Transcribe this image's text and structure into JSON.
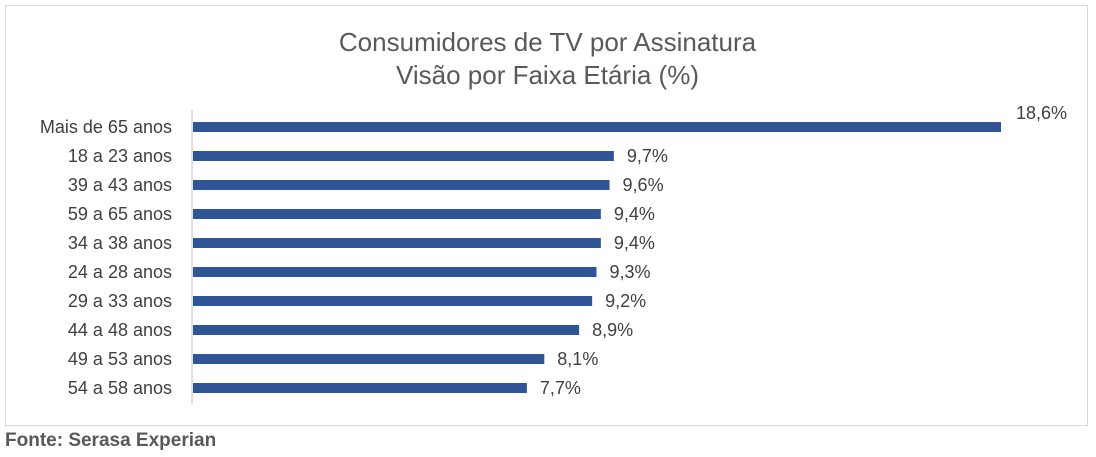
{
  "chart_data": {
    "type": "bar",
    "orientation": "horizontal",
    "title": "Consumidores de TV por Assinatura",
    "subtitle": "Visão por Faixa Etária (%)",
    "categories": [
      "Mais de 65 anos",
      "18 a 23 anos",
      "39 a 43 anos",
      "59 a 65 anos",
      "34 a 38 anos",
      "24 a 28 anos",
      "29 a 33 anos",
      "44 a 48 anos",
      "49 a 53 anos",
      "54 a 58 anos"
    ],
    "values": [
      18.6,
      9.7,
      9.6,
      9.4,
      9.4,
      9.3,
      9.2,
      8.9,
      8.1,
      7.7
    ],
    "value_labels": [
      "18,6%",
      "9,7%",
      "9,6%",
      "9,4%",
      "9,4%",
      "9,3%",
      "9,2%",
      "8,9%",
      "8,1%",
      "7,7%"
    ],
    "xlim": [
      0,
      18.6
    ],
    "grid": false,
    "bar_color": "#2f5597"
  },
  "footer": {
    "source": "Fonte: Serasa Experian"
  }
}
